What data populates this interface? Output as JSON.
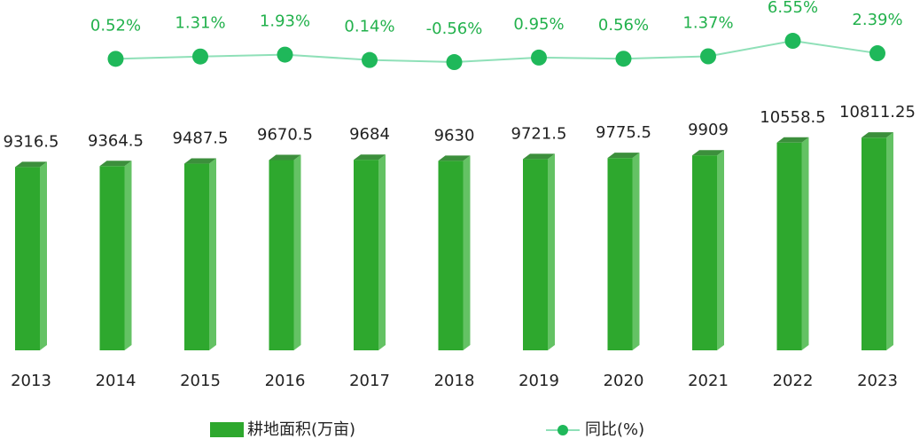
{
  "chart_data": {
    "type": "bar_line",
    "categories": [
      "2013",
      "2014",
      "2015",
      "2016",
      "2017",
      "2018",
      "2019",
      "2020",
      "2021",
      "2022",
      "2023"
    ],
    "series": [
      {
        "name": "耕地面积(万亩)",
        "type": "bar",
        "color": "#2ea82e",
        "values": [
          9316.5,
          9364.5,
          9487.5,
          9670.5,
          9684,
          9630,
          9721.5,
          9775.5,
          9909,
          10558.5,
          10811.25
        ]
      },
      {
        "name": "同比(%)",
        "type": "line",
        "axis": "y2",
        "color": "#1fb85a",
        "values": [
          null,
          0.52,
          1.31,
          1.93,
          0.14,
          -0.56,
          0.95,
          0.56,
          1.37,
          6.55,
          2.39
        ],
        "value_labels": [
          null,
          "0.52%",
          "1.31%",
          "1.93%",
          "0.14%",
          "-0.56%",
          "0.95%",
          "0.56%",
          "1.37%",
          "6.55%",
          "2.39%"
        ]
      }
    ],
    "ylim": [
      0,
      11000
    ],
    "y2lim": [
      -1,
      7
    ],
    "legend": "bottom"
  }
}
